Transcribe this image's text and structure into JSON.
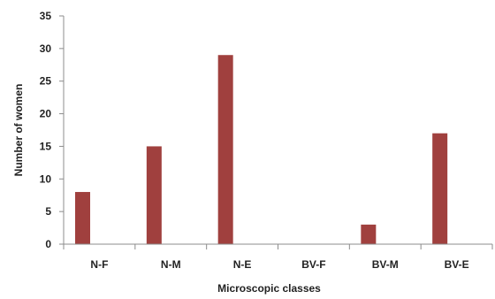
{
  "chart_data": {
    "type": "bar",
    "categories": [
      "N-F",
      "N-M",
      "N-E",
      "BV-F",
      "BV-M",
      "BV-E"
    ],
    "values": [
      8,
      15,
      29,
      0,
      3,
      17
    ],
    "xlabel": "Microscopic classes",
    "ylabel": "Number of women",
    "ylim": [
      0,
      35
    ],
    "yticks": [
      0,
      5,
      10,
      15,
      20,
      25,
      30,
      35
    ],
    "grid": false,
    "bar_color": "#A0403E",
    "axis_color": "#8C8C8C"
  }
}
